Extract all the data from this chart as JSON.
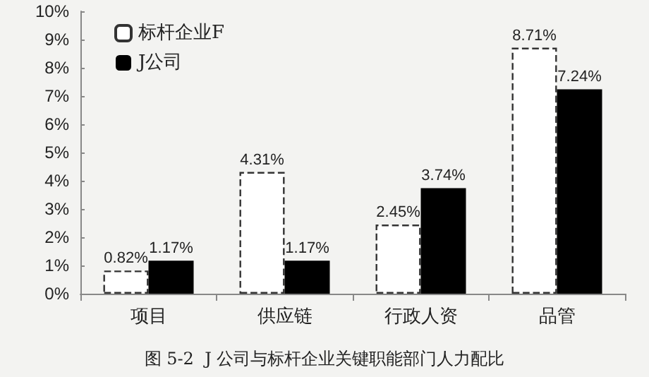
{
  "chart_data": {
    "type": "bar",
    "title": "图 5-2  J 公司与标杆企业关键职能部门人力配比",
    "categories": [
      "项目",
      "供应链",
      "行政人资",
      "品管"
    ],
    "series": [
      {
        "name": "标杆企业F",
        "color": "#ffffff",
        "line_style": "dashed",
        "values": [
          0.82,
          4.31,
          2.45,
          8.71
        ],
        "value_labels": [
          "0.82%",
          "4.31%",
          "2.45%",
          "8.71%"
        ]
      },
      {
        "name": "J公司",
        "color": "#000000",
        "values": [
          1.17,
          1.17,
          3.74,
          7.24
        ],
        "value_labels": [
          "1.17%",
          "1.17%",
          "3.74%",
          "7.24%"
        ]
      }
    ],
    "ylim": [
      0,
      10
    ],
    "yticks": [
      {
        "value": 0,
        "label": "0%"
      },
      {
        "value": 1,
        "label": "1%"
      },
      {
        "value": 2,
        "label": "2%"
      },
      {
        "value": 3,
        "label": "3%"
      },
      {
        "value": 4,
        "label": "4%"
      },
      {
        "value": 5,
        "label": "5%"
      },
      {
        "value": 6,
        "label": "6%"
      },
      {
        "value": 7,
        "label": "7%"
      },
      {
        "value": 8,
        "label": "8%"
      },
      {
        "value": 9,
        "label": "9%"
      },
      {
        "value": 10,
        "label": "10%"
      }
    ],
    "grid": false,
    "legend": "top left"
  }
}
